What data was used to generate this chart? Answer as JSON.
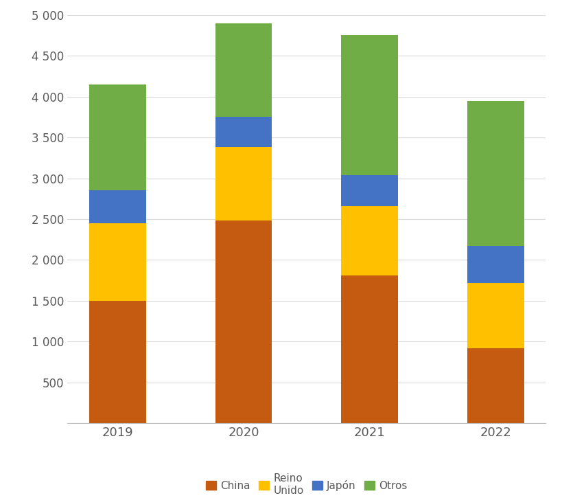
{
  "years": [
    "2019",
    "2020",
    "2021",
    "2022"
  ],
  "series": {
    "China": [
      1500,
      2480,
      1810,
      920
    ],
    "ReinoUnido": [
      950,
      900,
      850,
      800
    ],
    "Japon": [
      400,
      370,
      380,
      450
    ],
    "Otros": [
      1300,
      1150,
      1710,
      1780
    ]
  },
  "legend_labels": [
    "China",
    "Reino\nUnido",
    "Japón",
    "Otros"
  ],
  "colors": {
    "China": "#C55A11",
    "ReinoUnido": "#FFC000",
    "Japon": "#4472C4",
    "Otros": "#70AD47"
  },
  "ylim": [
    0,
    5000
  ],
  "yticks": [
    0,
    500,
    1000,
    1500,
    2000,
    2500,
    3000,
    3500,
    4000,
    4500,
    5000
  ],
  "background_color": "#FFFFFF",
  "bar_width": 0.45,
  "figsize": [
    8.2,
    7.25
  ],
  "dpi": 100,
  "tick_fontsize": 12,
  "xtick_fontsize": 13,
  "legend_fontsize": 11,
  "grid_color": "#D9D9D9",
  "tick_color": "#595959",
  "spine_color": "#BFBFBF"
}
